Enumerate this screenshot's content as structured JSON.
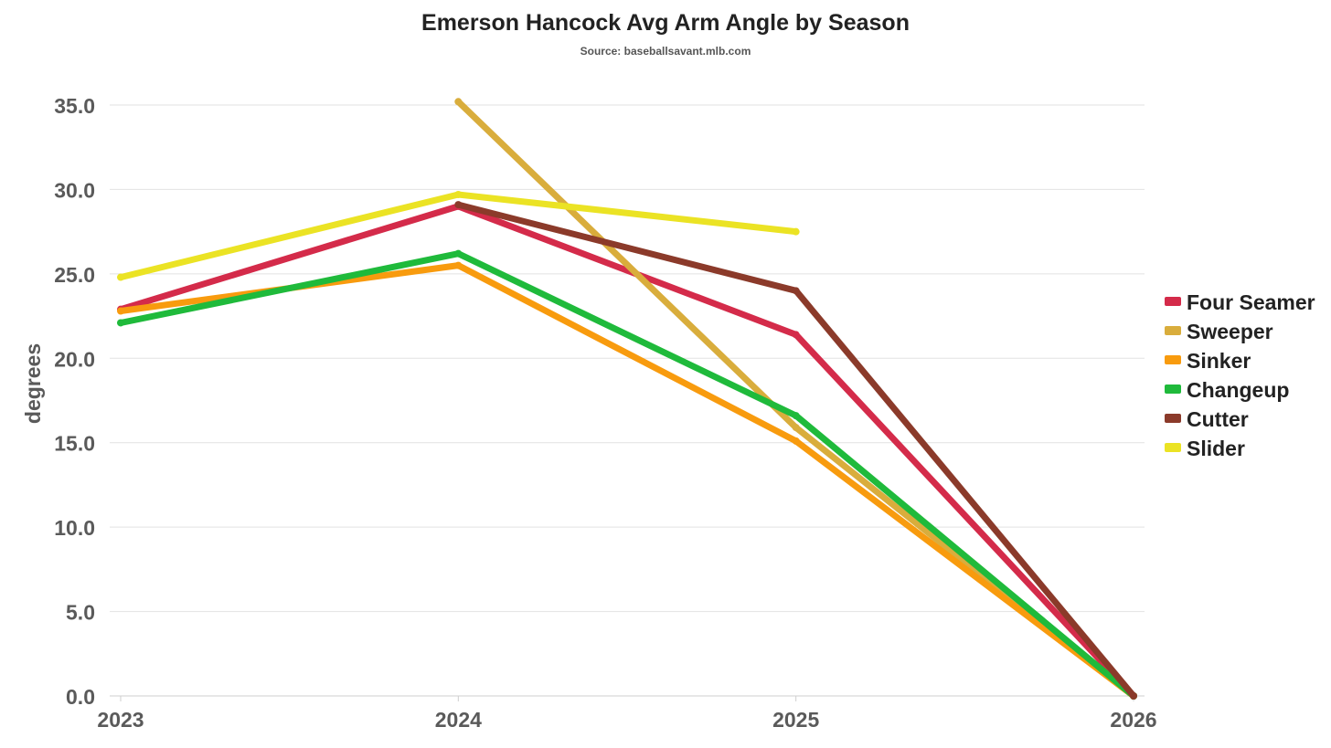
{
  "chart_data": {
    "type": "line",
    "title": "Emerson Hancock Avg Arm Angle by Season",
    "subtitle": "Source: baseballsavant.mlb.com",
    "xlabel": "",
    "ylabel": "degrees",
    "categories": [
      "2023",
      "2024",
      "2025",
      "2026"
    ],
    "ylim": [
      0,
      35
    ],
    "yticks": [
      "0.0",
      "5.0",
      "10.0",
      "15.0",
      "20.0",
      "25.0",
      "30.0",
      "35.0"
    ],
    "ytick_values": [
      0,
      5,
      10,
      15,
      20,
      25,
      30,
      35
    ],
    "grid": true,
    "legend_position": "right",
    "series": [
      {
        "name": "Four Seamer",
        "color": "#d42b4a",
        "values": [
          22.9,
          29.0,
          21.4,
          0.0
        ]
      },
      {
        "name": "Sweeper",
        "color": "#d9ad3c",
        "values": [
          null,
          35.2,
          15.9,
          0.0
        ]
      },
      {
        "name": "Sinker",
        "color": "#f89b0e",
        "values": [
          22.8,
          25.5,
          15.1,
          0.0
        ]
      },
      {
        "name": "Changeup",
        "color": "#1fba3b",
        "values": [
          22.1,
          26.2,
          16.6,
          0.0
        ]
      },
      {
        "name": "Cutter",
        "color": "#8b3a2a",
        "values": [
          null,
          29.1,
          24.0,
          0.0
        ]
      },
      {
        "name": "Slider",
        "color": "#ebe324",
        "values": [
          24.8,
          29.7,
          27.5,
          null
        ]
      }
    ]
  }
}
